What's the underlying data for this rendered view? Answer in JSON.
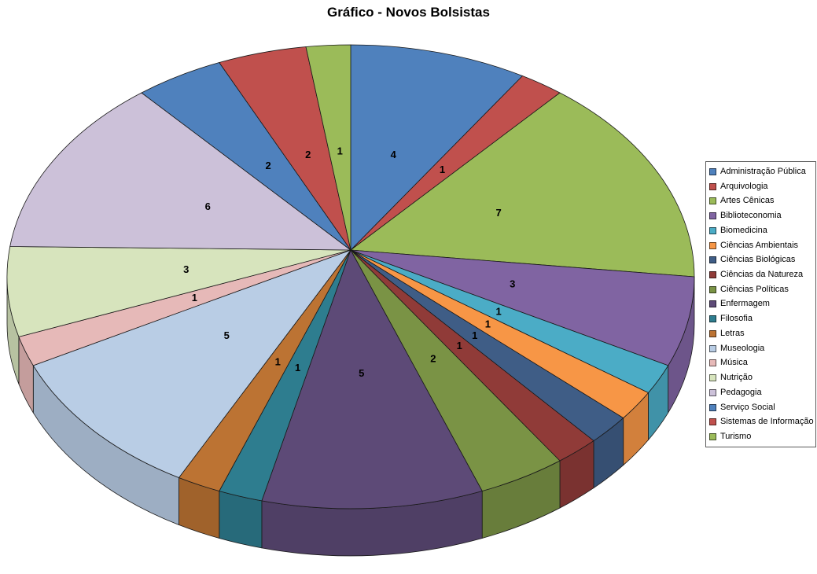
{
  "chart_data": {
    "type": "pie",
    "style": "3d",
    "title": "Gráfico - Novos Bolsistas",
    "legend_position": "right",
    "background_color": "#FFFFFF",
    "label_color": "#000000",
    "outline_color": "#1a1a1a",
    "items": [
      {
        "name": "Administração Pública",
        "value": 4,
        "color": "#4F81BD"
      },
      {
        "name": "Arquivologia",
        "value": 1,
        "color": "#C0504D"
      },
      {
        "name": "Artes Cênicas",
        "value": 7,
        "color": "#9BBB59"
      },
      {
        "name": "Biblioteconomia",
        "value": 3,
        "color": "#8064A2"
      },
      {
        "name": "Biomedicina",
        "value": 1,
        "color": "#4BACC6"
      },
      {
        "name": "Ciências Ambientais",
        "value": 1,
        "color": "#F79646"
      },
      {
        "name": "Ciências Biológicas",
        "value": 1,
        "color": "#3F5D86"
      },
      {
        "name": "Ciências da Natureza",
        "value": 1,
        "color": "#903B38"
      },
      {
        "name": "Ciências Políticas",
        "value": 2,
        "color": "#7A9345"
      },
      {
        "name": "Enfermagem",
        "value": 5,
        "color": "#5D4A77"
      },
      {
        "name": "Filosofia",
        "value": 1,
        "color": "#2E7D8F"
      },
      {
        "name": "Letras",
        "value": 1,
        "color": "#BC7333"
      },
      {
        "name": "Museologia",
        "value": 5,
        "color": "#B9CDE5"
      },
      {
        "name": "Música",
        "value": 1,
        "color": "#E6B9B8"
      },
      {
        "name": "Nutrição",
        "value": 3,
        "color": "#D7E4BD"
      },
      {
        "name": "Pedagogia",
        "value": 6,
        "color": "#CCC1D9"
      },
      {
        "name": "Serviço Social",
        "value": 2,
        "color": "#4F81BD"
      },
      {
        "name": "Sistemas de Informação",
        "value": 2,
        "color": "#C0504D"
      },
      {
        "name": "Turismo",
        "value": 1,
        "color": "#9BBB59"
      }
    ]
  }
}
